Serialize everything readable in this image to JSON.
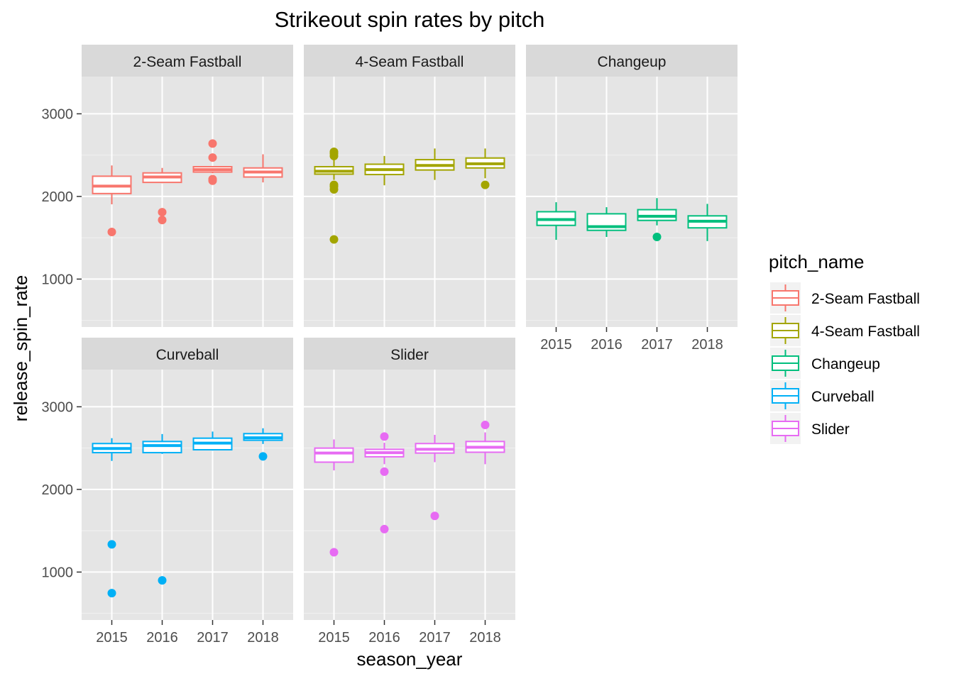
{
  "chart_data": {
    "type": "boxplot",
    "title": "Strikeout spin rates by pitch",
    "xlabel": "season_year",
    "ylabel": "release_spin_rate",
    "categories": [
      "2015",
      "2016",
      "2017",
      "2018"
    ],
    "y_ticks": [
      1000,
      2000,
      3000
    ],
    "ylim": [
      420,
      3450
    ],
    "grid": true,
    "legend": {
      "title": "pitch_name",
      "placement": "right",
      "entries": [
        "2-Seam Fastball",
        "4-Seam Fastball",
        "Changeup",
        "Curveball",
        "Slider"
      ]
    },
    "colors": {
      "2-Seam Fastball": "#f8766d",
      "4-Seam Fastball": "#a3a500",
      "Changeup": "#00bf7d",
      "Curveball": "#00b0f6",
      "Slider": "#e76bf3"
    },
    "facets": [
      {
        "name": "2-Seam Fastball",
        "boxes": [
          {
            "x": "2015",
            "lower": 1905,
            "q1": 2035,
            "median": 2125,
            "q3": 2245,
            "upper": 2375,
            "outliers": [
              1570
            ]
          },
          {
            "x": "2016",
            "lower": 2160,
            "q1": 2170,
            "median": 2235,
            "q3": 2285,
            "upper": 2345,
            "outliers": [
              1810,
              1715
            ]
          },
          {
            "x": "2017",
            "lower": 2280,
            "q1": 2295,
            "median": 2325,
            "q3": 2360,
            "upper": 2365,
            "outliers": [
              2640,
              2470,
              2210,
              2190
            ]
          },
          {
            "x": "2018",
            "lower": 2170,
            "q1": 2235,
            "median": 2295,
            "q3": 2345,
            "upper": 2510,
            "outliers": []
          }
        ]
      },
      {
        "name": "4-Seam Fastball",
        "boxes": [
          {
            "x": "2015",
            "lower": 2200,
            "q1": 2270,
            "median": 2305,
            "q3": 2360,
            "upper": 2450,
            "outliers": [
              2540,
              2520,
              2490,
              2140,
              2120,
              2085,
              1480
            ]
          },
          {
            "x": "2016",
            "lower": 2135,
            "q1": 2265,
            "median": 2325,
            "q3": 2390,
            "upper": 2490,
            "outliers": []
          },
          {
            "x": "2017",
            "lower": 2200,
            "q1": 2320,
            "median": 2375,
            "q3": 2445,
            "upper": 2580,
            "outliers": []
          },
          {
            "x": "2018",
            "lower": 2220,
            "q1": 2345,
            "median": 2395,
            "q3": 2465,
            "upper": 2580,
            "outliers": [
              2140
            ]
          }
        ]
      },
      {
        "name": "Changeup",
        "boxes": [
          {
            "x": "2015",
            "lower": 1475,
            "q1": 1650,
            "median": 1720,
            "q3": 1815,
            "upper": 1930,
            "outliers": []
          },
          {
            "x": "2016",
            "lower": 1510,
            "q1": 1590,
            "median": 1635,
            "q3": 1790,
            "upper": 1870,
            "outliers": []
          },
          {
            "x": "2017",
            "lower": 1650,
            "q1": 1710,
            "median": 1760,
            "q3": 1840,
            "upper": 1980,
            "outliers": [
              1510
            ]
          },
          {
            "x": "2018",
            "lower": 1460,
            "q1": 1620,
            "median": 1700,
            "q3": 1765,
            "upper": 1910,
            "outliers": []
          }
        ]
      },
      {
        "name": "Curveball",
        "boxes": [
          {
            "x": "2015",
            "lower": 2345,
            "q1": 2445,
            "median": 2495,
            "q3": 2555,
            "upper": 2620,
            "outliers": [
              1335,
              745
            ]
          },
          {
            "x": "2016",
            "lower": 2430,
            "q1": 2445,
            "median": 2530,
            "q3": 2580,
            "upper": 2670,
            "outliers": [
              900
            ]
          },
          {
            "x": "2017",
            "lower": 2470,
            "q1": 2480,
            "median": 2560,
            "q3": 2620,
            "upper": 2700,
            "outliers": []
          },
          {
            "x": "2018",
            "lower": 2550,
            "q1": 2595,
            "median": 2625,
            "q3": 2675,
            "upper": 2740,
            "outliers": [
              2400
            ]
          }
        ]
      },
      {
        "name": "Slider",
        "boxes": [
          {
            "x": "2015",
            "lower": 2230,
            "q1": 2330,
            "median": 2440,
            "q3": 2500,
            "upper": 2605,
            "outliers": [
              1240
            ]
          },
          {
            "x": "2016",
            "lower": 2305,
            "q1": 2395,
            "median": 2445,
            "q3": 2485,
            "upper": 2565,
            "outliers": [
              2640,
              2215,
              1520
            ]
          },
          {
            "x": "2017",
            "lower": 2330,
            "q1": 2440,
            "median": 2485,
            "q3": 2555,
            "upper": 2660,
            "outliers": [
              1680
            ]
          },
          {
            "x": "2018",
            "lower": 2305,
            "q1": 2450,
            "median": 2510,
            "q3": 2580,
            "upper": 2690,
            "outliers": [
              2780
            ]
          }
        ]
      }
    ]
  }
}
